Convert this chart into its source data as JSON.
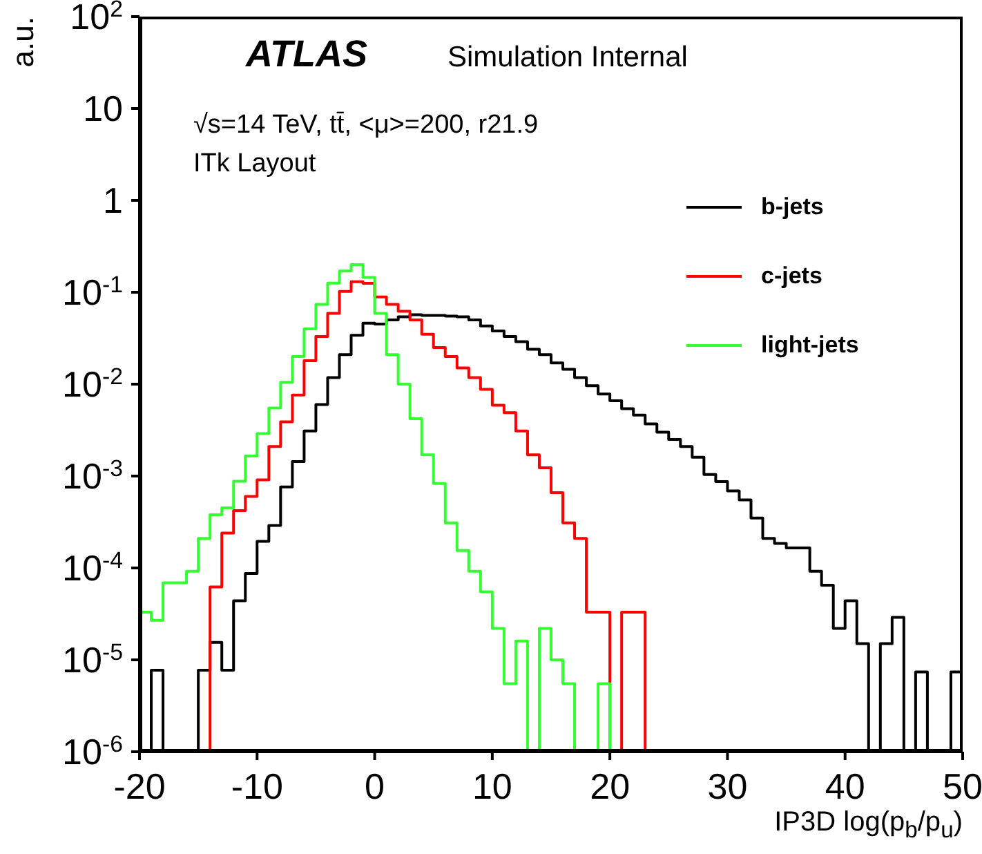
{
  "chart_data": {
    "type": "histogram",
    "xlabel": "IP3D log(p$_{b}$/p$_{u}$)",
    "ylabel": "a.u.",
    "annotations": [
      "ATLAS",
      "Simulation Internal",
      "√s=14 TeV, tt̄, <μ>=200, r21.9",
      "ITk Layout"
    ],
    "bins": [
      -20,
      -19,
      -18,
      -17,
      -16,
      -15,
      -14,
      -13,
      -12,
      -11,
      -10,
      -9,
      -8,
      -7,
      -6,
      -5,
      -4,
      -3,
      -2,
      -1,
      0,
      1,
      2,
      3,
      4,
      5,
      6,
      7,
      8,
      9,
      10,
      11,
      12,
      13,
      14,
      15,
      16,
      17,
      18,
      19,
      20,
      21,
      22,
      23,
      24,
      25,
      26,
      27,
      28,
      29,
      30,
      31,
      32,
      33,
      34,
      35,
      36,
      37,
      38,
      39,
      40,
      41,
      42,
      43,
      44,
      45,
      46,
      47,
      48,
      49,
      50
    ],
    "series": [
      {
        "name": "b-jets",
        "color": "#000000",
        "values": [
          null,
          7.7e-06,
          null,
          null,
          null,
          7.7e-06,
          1.55e-05,
          7.7e-06,
          4.4e-05,
          8.7e-05,
          0.000195,
          0.00029,
          0.00076,
          0.00144,
          0.0031,
          0.006,
          0.0118,
          0.021,
          0.034,
          0.046,
          0.045,
          0.05,
          0.054,
          0.057,
          0.056,
          0.056,
          0.055,
          0.054,
          0.05,
          0.043,
          0.038,
          0.033,
          0.029,
          0.024,
          0.021,
          0.017,
          0.0145,
          0.0118,
          0.0096,
          0.0078,
          0.0066,
          0.0054,
          0.0046,
          0.0037,
          0.003,
          0.0025,
          0.0021,
          0.0016,
          0.00104,
          0.00087,
          0.00069,
          0.00055,
          0.00035,
          0.00021,
          0.000185,
          0.000165,
          0.000165,
          9.2e-05,
          6.5e-05,
          2.2e-05,
          4.4e-05,
          1.5e-05,
          null,
          1.5e-05,
          2.9e-05,
          null,
          7.4e-06,
          null,
          null,
          7.4e-06
        ]
      },
      {
        "name": "c-jets",
        "color": "#ff0000",
        "values": [
          null,
          null,
          null,
          null,
          null,
          null,
          6.2e-05,
          0.00024,
          0.00042,
          0.0006,
          0.00091,
          0.0021,
          0.0039,
          0.0076,
          0.018,
          0.033,
          0.059,
          0.102,
          0.13,
          0.125,
          0.089,
          0.074,
          0.062,
          0.05,
          0.035,
          0.025,
          0.02,
          0.015,
          0.0118,
          0.0088,
          0.0059,
          0.0049,
          0.0031,
          0.0017,
          0.00123,
          0.00066,
          0.00031,
          0.00021,
          3.3e-05,
          3.3e-05,
          null,
          3.3e-05,
          3.3e-05,
          null,
          null,
          null,
          null,
          null,
          null,
          null,
          null,
          null,
          null,
          null,
          null,
          null,
          null,
          null,
          null,
          null,
          null,
          null,
          null,
          null,
          null,
          null,
          null,
          null,
          null,
          null
        ]
      },
      {
        "name": "light-jets",
        "color": "#33ff33",
        "values": [
          3.3e-05,
          2.7e-05,
          6.9e-05,
          6.9e-05,
          9.2e-05,
          0.00021,
          0.00038,
          0.00045,
          0.00088,
          0.00165,
          0.0029,
          0.0055,
          0.0105,
          0.02,
          0.04,
          0.074,
          0.126,
          0.17,
          0.2,
          0.145,
          0.059,
          0.021,
          0.01,
          0.0042,
          0.0017,
          0.00083,
          0.00031,
          0.000155,
          9.2e-05,
          5.5e-05,
          2.2e-05,
          5.5e-06,
          1.6e-05,
          null,
          2.2e-05,
          1e-05,
          5.5e-06,
          null,
          null,
          5.5e-06,
          null,
          null,
          null,
          null,
          null,
          null,
          null,
          null,
          null,
          null,
          null,
          null,
          null,
          null,
          null,
          null,
          null,
          null,
          null,
          null,
          null,
          null,
          null,
          null,
          null,
          null,
          null,
          null,
          null,
          null
        ]
      }
    ],
    "xlim": [
      -20,
      50
    ],
    "xticks": [
      -20,
      -10,
      0,
      10,
      20,
      30,
      40,
      50
    ],
    "ylim": [
      1e-06,
      100
    ],
    "log": "y",
    "yticks": [
      {
        "value": 100,
        "label": "10$^{2}$"
      },
      10,
      1,
      {
        "value": 0.1,
        "label": "10$^{-1}$"
      },
      {
        "value": 0.01,
        "label": "10$^{-2}$"
      },
      {
        "value": 0.001,
        "label": "10$^{-3}$"
      },
      {
        "value": 0.0001,
        "label": "10$^{-4}$"
      },
      {
        "value": 1e-05,
        "label": "10$^{-5}$"
      },
      {
        "value": 1e-06,
        "label": "10$^{-6}$"
      }
    ],
    "legend": "top right"
  }
}
